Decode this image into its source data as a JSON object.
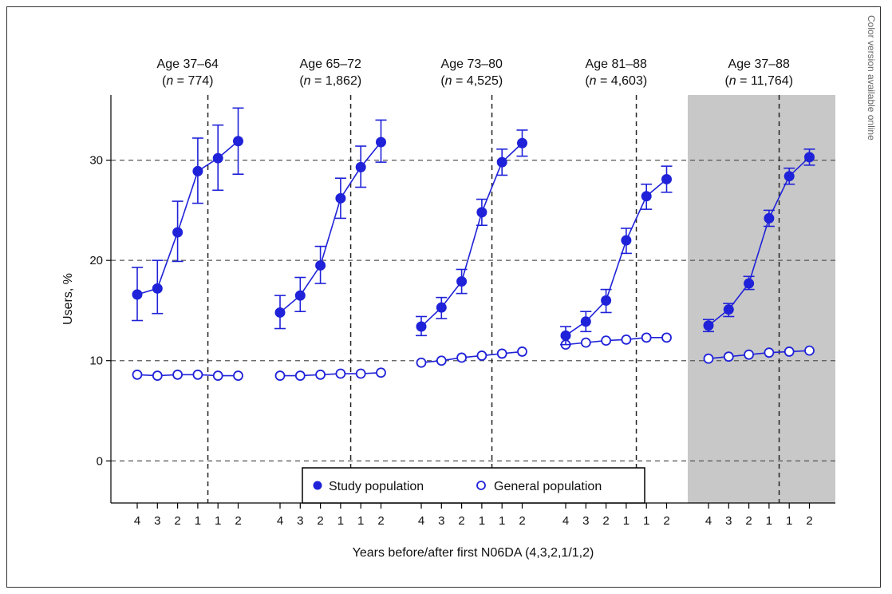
{
  "page": {
    "side_note": "Color version available online"
  },
  "colors": {
    "series": "#1f22d8",
    "grid": "#555555",
    "shade": "#c8c8c8",
    "axis": "#000000"
  },
  "chart_data": {
    "type": "line",
    "ylabel": "Users, %",
    "xlabel": "Years before/after first N06DA (4,3,2,1/1,2)",
    "ylim": [
      -4.2,
      36.5
    ],
    "y_ticks": [
      0,
      10,
      20,
      30
    ],
    "grid": "dashed horizontal at ticks; dashed vertical at index date in each panel",
    "legend_position": "bottom-center",
    "x_tick_labels": [
      "4",
      "3",
      "2",
      "1",
      "1",
      "2"
    ],
    "series_names": [
      "Study population",
      "General population"
    ],
    "panels": [
      {
        "title": "Age 37–64",
        "n_text": "774",
        "shaded": false,
        "study": {
          "values": [
            16.6,
            17.2,
            22.8,
            28.9,
            30.2,
            31.9
          ],
          "lower": [
            14.0,
            14.7,
            19.9,
            25.7,
            27.0,
            28.6
          ],
          "upper": [
            19.3,
            20.0,
            25.9,
            32.2,
            33.5,
            35.2
          ]
        },
        "general": {
          "values": [
            8.6,
            8.5,
            8.6,
            8.6,
            8.5,
            8.5
          ]
        }
      },
      {
        "title": "Age 65–72",
        "n_text": "1,862",
        "shaded": false,
        "study": {
          "values": [
            14.8,
            16.5,
            19.5,
            26.2,
            29.3,
            31.8
          ],
          "lower": [
            13.2,
            14.9,
            17.7,
            24.2,
            27.3,
            29.8
          ],
          "upper": [
            16.5,
            18.3,
            21.4,
            28.2,
            31.4,
            34.0
          ]
        },
        "general": {
          "values": [
            8.5,
            8.5,
            8.6,
            8.7,
            8.7,
            8.8
          ]
        }
      },
      {
        "title": "Age 73–80",
        "n_text": "4,525",
        "shaded": false,
        "study": {
          "values": [
            13.4,
            15.3,
            17.9,
            24.8,
            29.8,
            31.7
          ],
          "lower": [
            12.5,
            14.2,
            16.7,
            23.5,
            28.5,
            30.4
          ],
          "upper": [
            14.4,
            16.3,
            19.1,
            26.1,
            31.1,
            33.0
          ]
        },
        "general": {
          "values": [
            9.8,
            10.0,
            10.3,
            10.5,
            10.7,
            10.9
          ]
        }
      },
      {
        "title": "Age 81–88",
        "n_text": "4,603",
        "shaded": false,
        "study": {
          "values": [
            12.5,
            13.9,
            16.0,
            22.0,
            26.4,
            28.1
          ],
          "lower": [
            11.6,
            12.9,
            14.8,
            20.7,
            25.1,
            26.8
          ],
          "upper": [
            13.4,
            14.9,
            17.1,
            23.2,
            27.6,
            29.4
          ]
        },
        "general": {
          "values": [
            11.6,
            11.8,
            12.0,
            12.1,
            12.3,
            12.3
          ]
        }
      },
      {
        "title": "Age 37–88",
        "n_text": "11,764",
        "shaded": true,
        "study": {
          "values": [
            13.5,
            15.1,
            17.7,
            24.2,
            28.4,
            30.3
          ],
          "lower": [
            12.9,
            14.4,
            17.1,
            23.4,
            27.6,
            29.5
          ],
          "upper": [
            14.1,
            15.7,
            18.4,
            25.0,
            29.2,
            31.1
          ]
        },
        "general": {
          "values": [
            10.2,
            10.4,
            10.6,
            10.8,
            10.9,
            11.0
          ]
        }
      }
    ]
  }
}
